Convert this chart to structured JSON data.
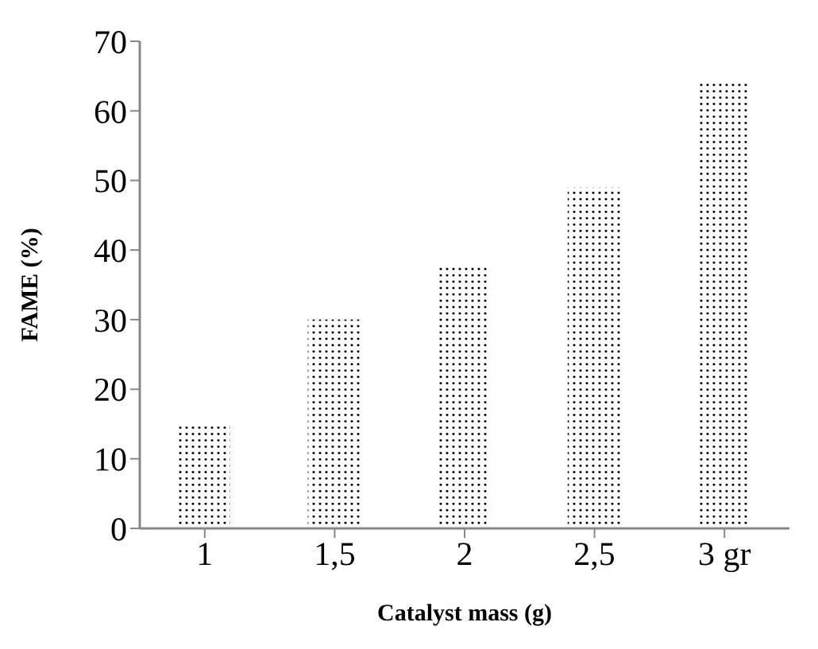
{
  "chart_data": {
    "type": "bar",
    "xlabel": "Catalyst mass (g)",
    "ylabel": "FAME (%)",
    "categories": [
      "1",
      "1,5",
      "2",
      "2,5",
      "3 gr"
    ],
    "values": [
      15,
      30,
      37.5,
      49,
      64
    ],
    "color": "#000000",
    "ylim": [
      0,
      70
    ],
    "yticks": [
      0,
      10,
      20,
      30,
      40,
      50,
      60,
      70
    ],
    "grid": false,
    "legend": false
  }
}
